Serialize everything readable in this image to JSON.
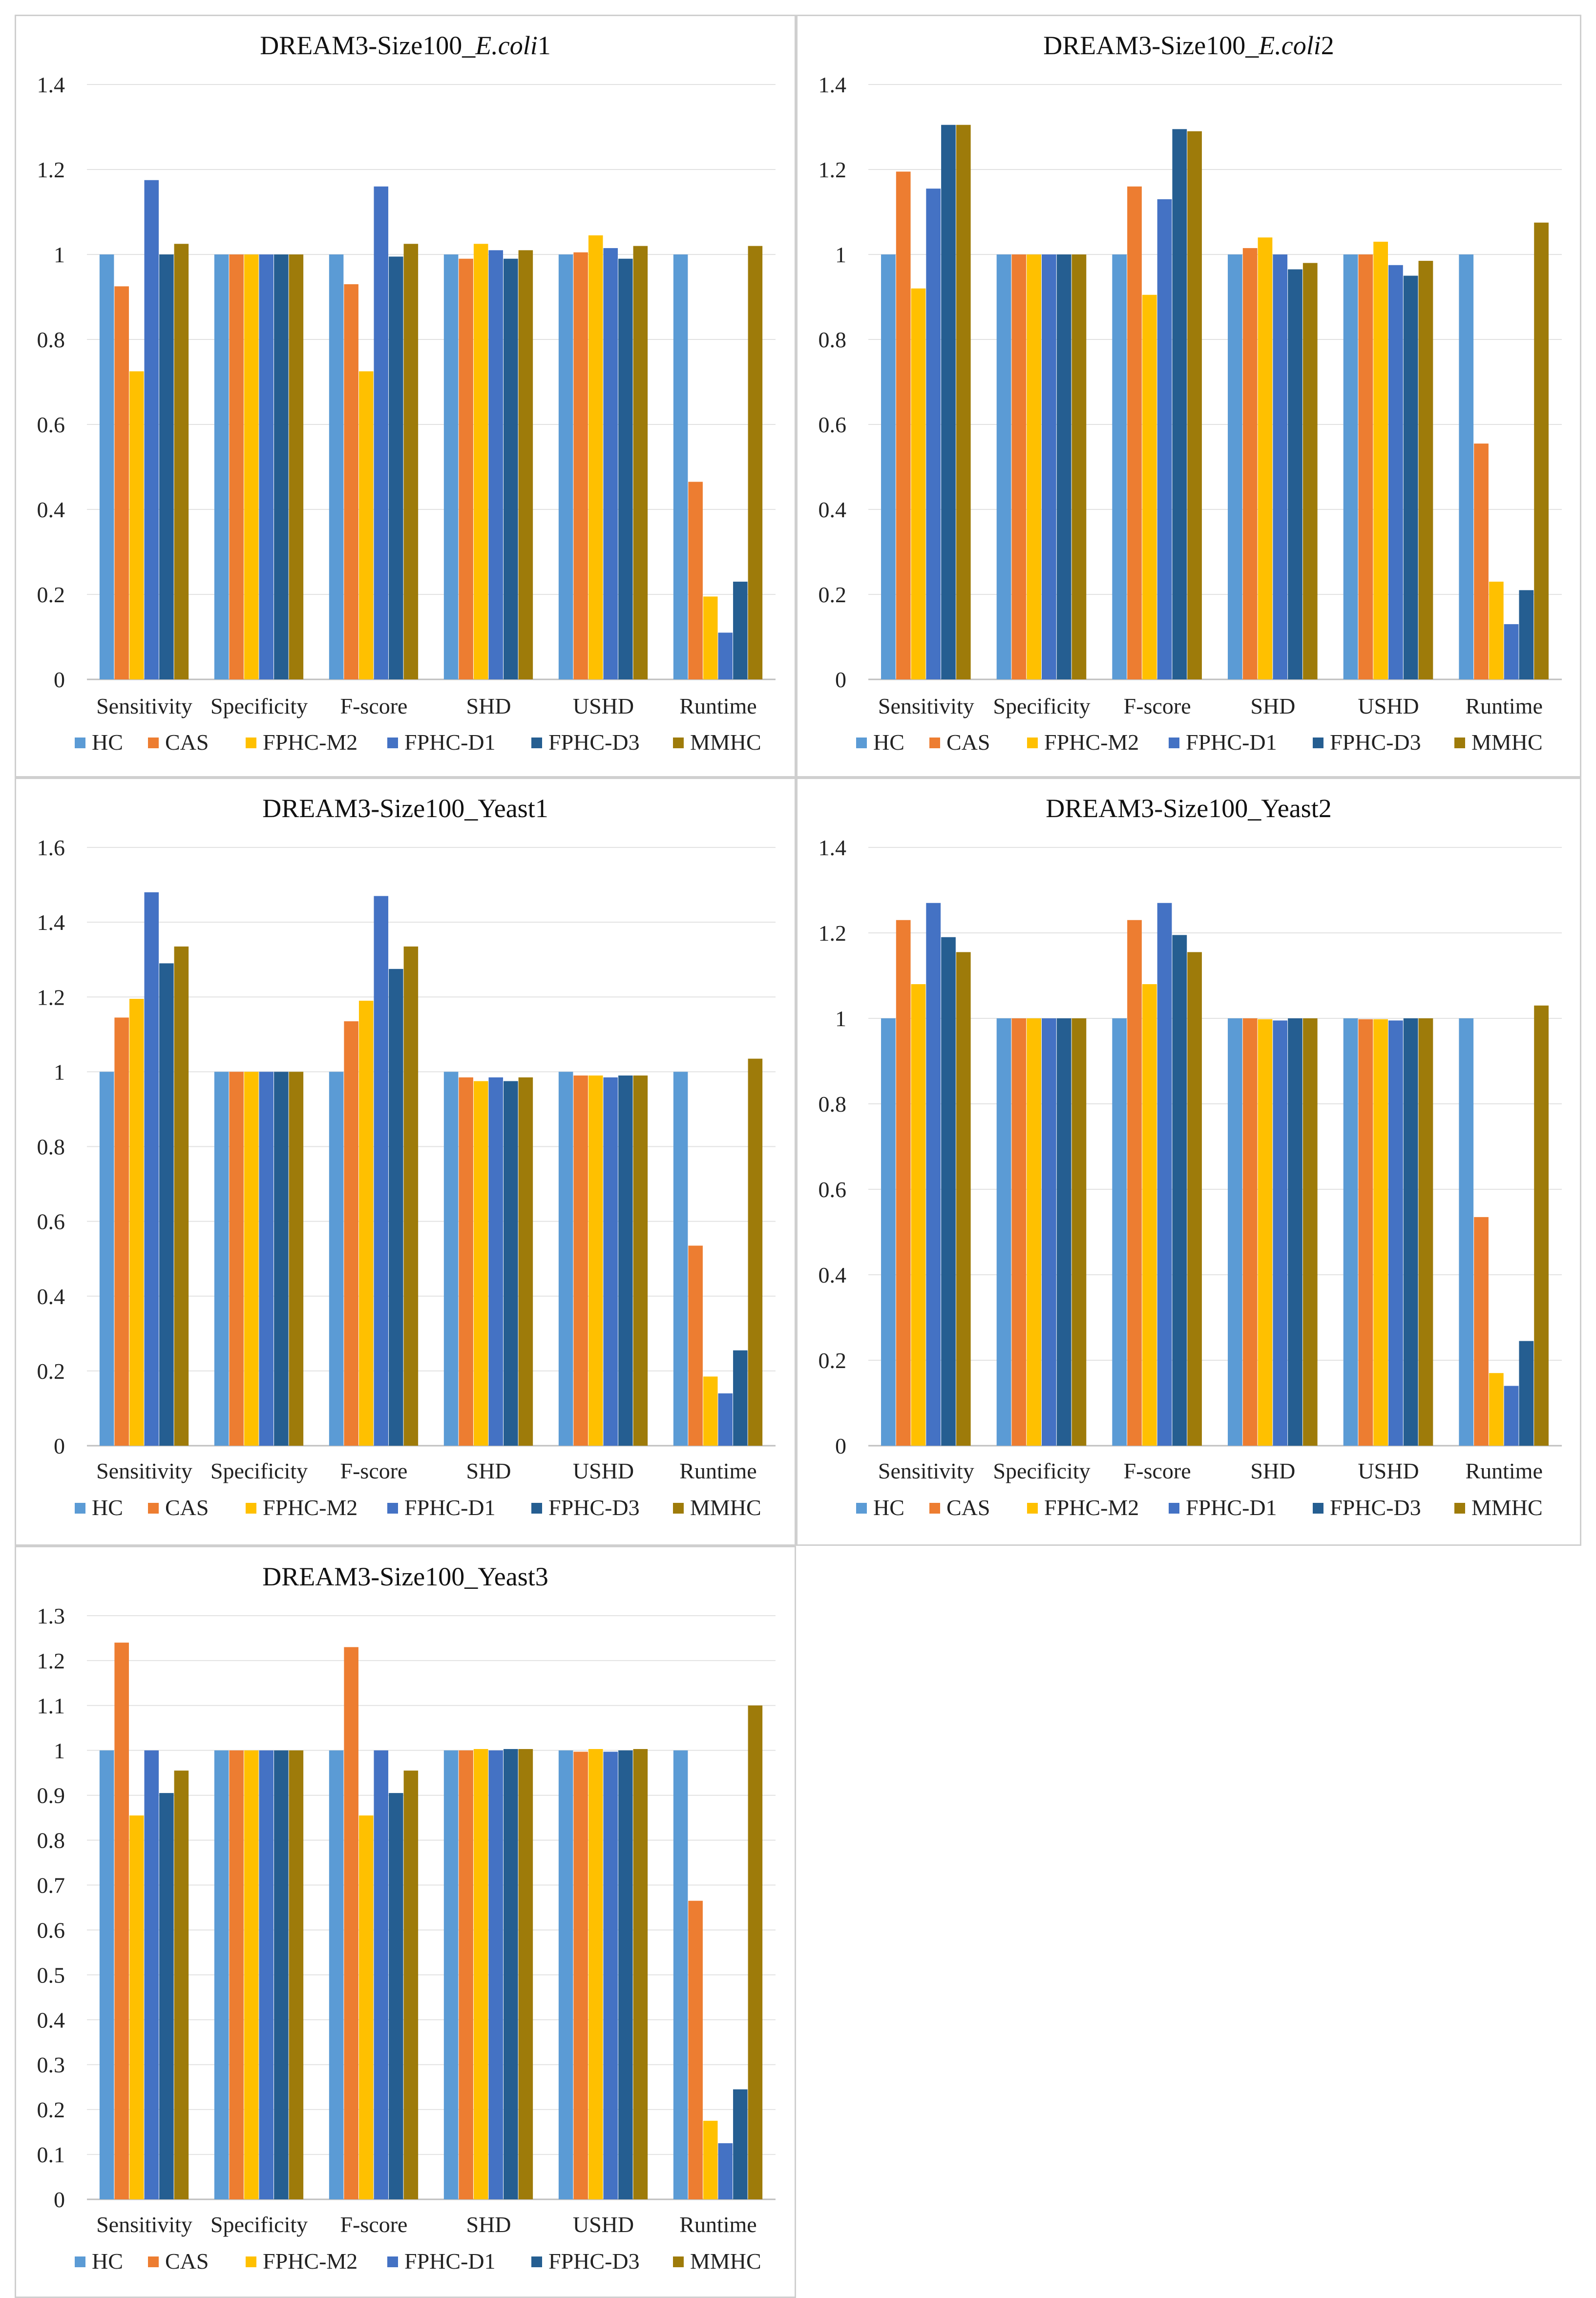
{
  "colors": {
    "HC": "#5B9BD5",
    "CAS": "#ED7D31",
    "FPHC-M2": "#FFC000",
    "FPHC-D1": "#4472C4",
    "FPHC-D3": "#255E91",
    "MMHC": "#9E7B0A"
  },
  "chart_data": [
    {
      "type": "bar",
      "title_parts": [
        "DREAM3-Size100_",
        "E.coli",
        "1"
      ],
      "categories": [
        "Sensitivity",
        "Specificity",
        "F-score",
        "SHD",
        "USHD",
        "Runtime"
      ],
      "ylim": [
        0,
        1.4
      ],
      "yticks": [
        "0",
        "0.2",
        "0.4",
        "0.6",
        "0.8",
        "1",
        "1.2",
        "1.4"
      ],
      "ytick_values": [
        0,
        0.2,
        0.4,
        0.6,
        0.8,
        1,
        1.2,
        1.4
      ],
      "series": [
        {
          "name": "HC",
          "values": [
            1,
            1,
            1,
            1,
            1,
            1
          ]
        },
        {
          "name": "CAS",
          "values": [
            0.925,
            1,
            0.93,
            0.99,
            1.005,
            0.465
          ]
        },
        {
          "name": "FPHC-M2",
          "values": [
            0.725,
            1,
            0.725,
            1.025,
            1.045,
            0.195
          ]
        },
        {
          "name": "FPHC-D1",
          "values": [
            1.175,
            1,
            1.16,
            1.01,
            1.015,
            0.11
          ]
        },
        {
          "name": "FPHC-D3",
          "values": [
            1,
            1,
            0.995,
            0.99,
            0.99,
            0.23
          ]
        },
        {
          "name": "MMHC",
          "values": [
            1.025,
            1,
            1.025,
            1.01,
            1.02,
            1.02
          ]
        }
      ]
    },
    {
      "type": "bar",
      "title_parts": [
        "DREAM3-Size100_",
        "E.coli",
        "2"
      ],
      "categories": [
        "Sensitivity",
        "Specificity",
        "F-score",
        "SHD",
        "USHD",
        "Runtime"
      ],
      "ylim": [
        0,
        1.4
      ],
      "yticks": [
        "0",
        "0.2",
        "0.4",
        "0.6",
        "0.8",
        "1",
        "1.2",
        "1.4"
      ],
      "ytick_values": [
        0,
        0.2,
        0.4,
        0.6,
        0.8,
        1,
        1.2,
        1.4
      ],
      "series": [
        {
          "name": "HC",
          "values": [
            1,
            1,
            1,
            1,
            1,
            1
          ]
        },
        {
          "name": "CAS",
          "values": [
            1.195,
            1,
            1.16,
            1.015,
            1,
            0.555
          ]
        },
        {
          "name": "FPHC-M2",
          "values": [
            0.92,
            1,
            0.905,
            1.04,
            1.03,
            0.23
          ]
        },
        {
          "name": "FPHC-D1",
          "values": [
            1.155,
            1,
            1.13,
            1,
            0.975,
            0.13
          ]
        },
        {
          "name": "FPHC-D3",
          "values": [
            1.305,
            1,
            1.295,
            0.965,
            0.95,
            0.21
          ]
        },
        {
          "name": "MMHC",
          "values": [
            1.305,
            1,
            1.29,
            0.98,
            0.985,
            1.075
          ]
        }
      ]
    },
    {
      "type": "bar",
      "title_parts": [
        "DREAM3-Size100_Yeast1",
        "",
        ""
      ],
      "categories": [
        "Sensitivity",
        "Specificity",
        "F-score",
        "SHD",
        "USHD",
        "Runtime"
      ],
      "ylim": [
        0,
        1.6
      ],
      "yticks": [
        "0",
        "0.2",
        "0.4",
        "0.6",
        "0.8",
        "1",
        "1.2",
        "1.4",
        "1.6"
      ],
      "ytick_values": [
        0,
        0.2,
        0.4,
        0.6,
        0.8,
        1,
        1.2,
        1.4,
        1.6
      ],
      "series": [
        {
          "name": "HC",
          "values": [
            1,
            1,
            1,
            1,
            1,
            1
          ]
        },
        {
          "name": "CAS",
          "values": [
            1.145,
            1,
            1.135,
            0.985,
            0.99,
            0.535
          ]
        },
        {
          "name": "FPHC-M2",
          "values": [
            1.195,
            1,
            1.19,
            0.975,
            0.99,
            0.185
          ]
        },
        {
          "name": "FPHC-D1",
          "values": [
            1.48,
            1,
            1.47,
            0.985,
            0.985,
            0.14
          ]
        },
        {
          "name": "FPHC-D3",
          "values": [
            1.29,
            1,
            1.275,
            0.975,
            0.99,
            0.255
          ]
        },
        {
          "name": "MMHC",
          "values": [
            1.335,
            1,
            1.335,
            0.985,
            0.99,
            1.035
          ]
        }
      ]
    },
    {
      "type": "bar",
      "title_parts": [
        "DREAM3-Size100_Yeast2",
        "",
        ""
      ],
      "categories": [
        "Sensitivity",
        "Specificity",
        "F-score",
        "SHD",
        "USHD",
        "Runtime"
      ],
      "ylim": [
        0,
        1.4
      ],
      "yticks": [
        "0",
        "0.2",
        "0.4",
        "0.6",
        "0.8",
        "1",
        "1.2",
        "1.4"
      ],
      "ytick_values": [
        0,
        0.2,
        0.4,
        0.6,
        0.8,
        1,
        1.2,
        1.4
      ],
      "series": [
        {
          "name": "HC",
          "values": [
            1,
            1,
            1,
            1,
            1,
            1
          ]
        },
        {
          "name": "CAS",
          "values": [
            1.23,
            1,
            1.23,
            1,
            0.998,
            0.535
          ]
        },
        {
          "name": "FPHC-M2",
          "values": [
            1.08,
            1,
            1.08,
            0.998,
            0.998,
            0.17
          ]
        },
        {
          "name": "FPHC-D1",
          "values": [
            1.27,
            1,
            1.27,
            0.995,
            0.995,
            0.14
          ]
        },
        {
          "name": "FPHC-D3",
          "values": [
            1.19,
            1,
            1.195,
            1,
            1,
            0.245
          ]
        },
        {
          "name": "MMHC",
          "values": [
            1.155,
            1,
            1.155,
            1,
            1,
            1.03
          ]
        }
      ]
    },
    {
      "type": "bar",
      "title_parts": [
        "DREAM3-Size100_Yeast3",
        "",
        ""
      ],
      "categories": [
        "Sensitivity",
        "Specificity",
        "F-score",
        "SHD",
        "USHD",
        "Runtime"
      ],
      "ylim": [
        0,
        1.3
      ],
      "yticks": [
        "0",
        "0.1",
        "0.2",
        "0.3",
        "0.4",
        "0.5",
        "0.6",
        "0.7",
        "0.8",
        "0.9",
        "1",
        "1.1",
        "1.2",
        "1.3"
      ],
      "ytick_values": [
        0,
        0.1,
        0.2,
        0.3,
        0.4,
        0.5,
        0.6,
        0.7,
        0.8,
        0.9,
        1,
        1.1,
        1.2,
        1.3
      ],
      "series": [
        {
          "name": "HC",
          "values": [
            1,
            1,
            1,
            1,
            1,
            1
          ]
        },
        {
          "name": "CAS",
          "values": [
            1.24,
            1,
            1.23,
            1,
            0.997,
            0.665
          ]
        },
        {
          "name": "FPHC-M2",
          "values": [
            0.855,
            1,
            0.855,
            1.003,
            1.003,
            0.175
          ]
        },
        {
          "name": "FPHC-D1",
          "values": [
            1,
            1,
            1,
            1,
            0.997,
            0.125
          ]
        },
        {
          "name": "FPHC-D3",
          "values": [
            0.905,
            1,
            0.905,
            1.003,
            1,
            0.245
          ]
        },
        {
          "name": "MMHC",
          "values": [
            0.955,
            1,
            0.955,
            1.003,
            1.003,
            1.1
          ]
        }
      ]
    }
  ]
}
